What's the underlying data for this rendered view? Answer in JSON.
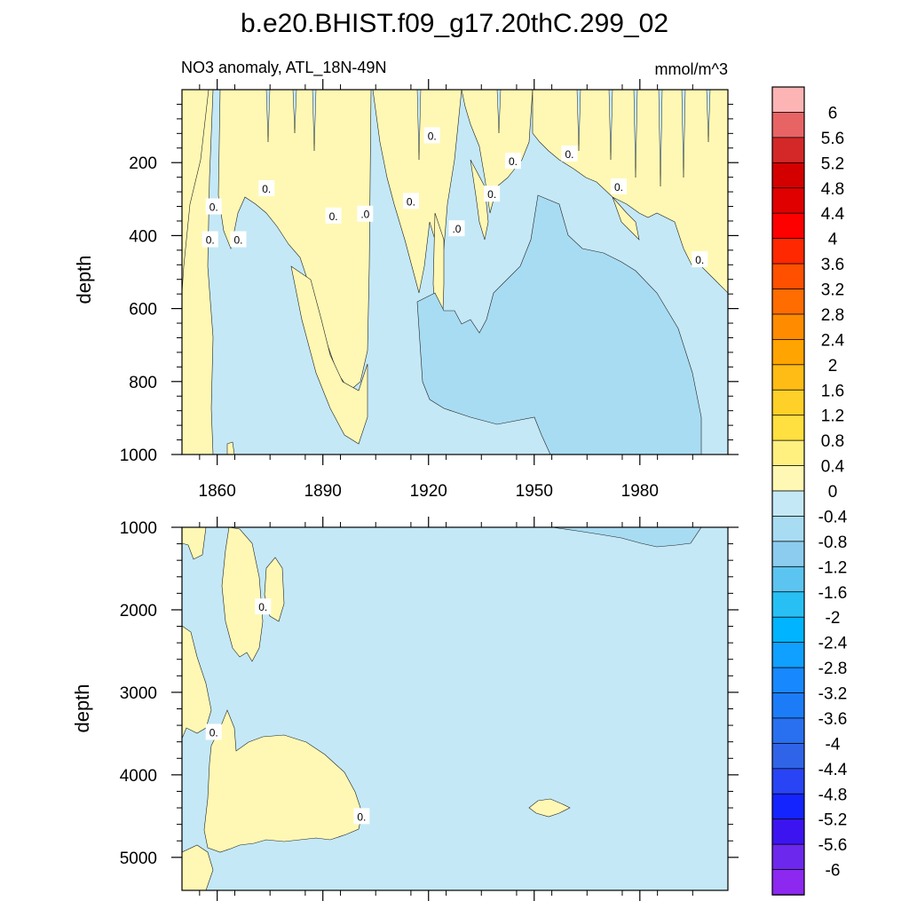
{
  "chart_data": {
    "type": "heatmap",
    "title": "b.e20.BHIST.f09_g17.20thC.299_02",
    "subtitle_left": "NO3 anomaly, ATL_18N-49N",
    "subtitle_right": "mmol/m^3",
    "xlabel": "",
    "ylabel": "depth",
    "xlim": [
      1850,
      2005
    ],
    "x_ticks": [
      "1860",
      "1890",
      "1920",
      "1950",
      "1980"
    ],
    "x_tick_values": [
      1860,
      1890,
      1920,
      1950,
      1980
    ],
    "panels": [
      {
        "name": "upper",
        "ylim": [
          0,
          1000
        ],
        "y_inverted": true,
        "y_ticks": [
          "200",
          "400",
          "600",
          "800",
          "1000"
        ],
        "y_tick_values": [
          200,
          400,
          600,
          800,
          1000
        ],
        "contour_labels": [
          {
            "x": 1859,
            "y": 320,
            "text": "0."
          },
          {
            "x": 1858,
            "y": 410,
            "text": "0."
          },
          {
            "x": 1866,
            "y": 410,
            "text": "0."
          },
          {
            "x": 1874,
            "y": 270,
            "text": "0."
          },
          {
            "x": 1893,
            "y": 345,
            "text": "0."
          },
          {
            "x": 1902,
            "y": 340,
            "text": ".0"
          },
          {
            "x": 1915,
            "y": 305,
            "text": "0."
          },
          {
            "x": 1921,
            "y": 125,
            "text": "0."
          },
          {
            "x": 1928,
            "y": 380,
            "text": ".0"
          },
          {
            "x": 1938,
            "y": 285,
            "text": "0."
          },
          {
            "x": 1944,
            "y": 195,
            "text": "0."
          },
          {
            "x": 1960,
            "y": 175,
            "text": "0."
          },
          {
            "x": 1974,
            "y": 265,
            "text": "0."
          },
          {
            "x": 1997,
            "y": 465,
            "text": "0."
          }
        ]
      },
      {
        "name": "lower",
        "ylim": [
          1000,
          5400
        ],
        "y_inverted": true,
        "y_ticks": [
          "1000",
          "2000",
          "3000",
          "4000",
          "5000"
        ],
        "y_tick_values": [
          1000,
          2000,
          3000,
          4000,
          5000
        ],
        "contour_labels": [
          {
            "x": 1873,
            "y": 1960,
            "text": "0."
          },
          {
            "x": 1859,
            "y": 3480,
            "text": "0."
          },
          {
            "x": 1901,
            "y": 4500,
            "text": "0."
          }
        ]
      }
    ],
    "colorbar": {
      "labels": [
        "6",
        "5.6",
        "5.2",
        "4.8",
        "4.4",
        "4",
        "3.6",
        "3.2",
        "2.8",
        "2.4",
        "2",
        "1.6",
        "1.2",
        "0.8",
        "0.4",
        "0",
        "-0.4",
        "-0.8",
        "-1.2",
        "-1.6",
        "-2",
        "-2.4",
        "-2.8",
        "-3.2",
        "-3.6",
        "-4",
        "-4.4",
        "-4.8",
        "-5.2",
        "-5.6",
        "-6"
      ],
      "colors": [
        "#fcb4b4",
        "#e86464",
        "#d42828",
        "#d40000",
        "#e00000",
        "#ff0000",
        "#ff2800",
        "#ff5000",
        "#ff6c00",
        "#ff8c00",
        "#ffa400",
        "#ffbc14",
        "#ffd028",
        "#ffe040",
        "#fff080",
        "#fff8b4",
        "#c4e8f6",
        "#a8dcf2",
        "#8cccee",
        "#5cc4f0",
        "#28c0f4",
        "#00b4ff",
        "#10a0ff",
        "#1888ff",
        "#1c7cf8",
        "#2870f0",
        "#3064e8",
        "#2844f4",
        "#1424ff",
        "#3c14f0",
        "#6c28ec",
        "#8c28f0"
      ]
    },
    "fill_colors": {
      "positive": "#fff8b4",
      "neg_04": "#c4e8f6",
      "neg_08": "#a8dcf2"
    }
  }
}
